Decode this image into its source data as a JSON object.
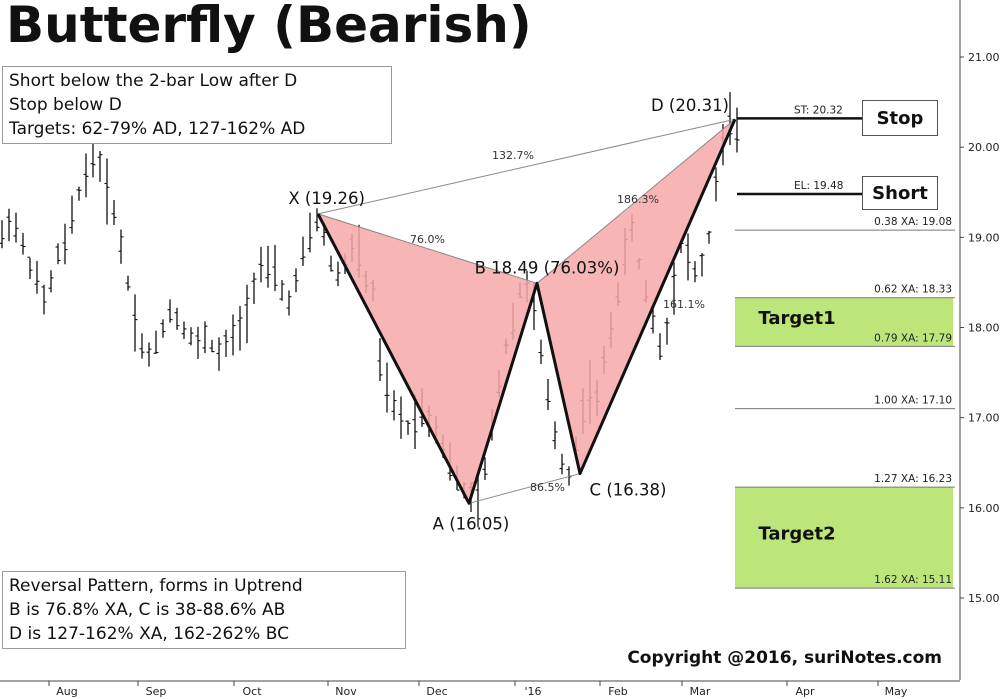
{
  "title": "Butterfly (Bearish)",
  "rules_box": {
    "lines": [
      "Short below the 2-bar Low after D",
      "Stop below D",
      "Targets: 62-79% AD, 127-162% AD"
    ]
  },
  "description_box": {
    "lines": [
      "Reversal Pattern, forms in Uptrend",
      "B is 76.8% XA, C is 38-88.6% AB",
      "D is 127-162% XA, 162-262% BC"
    ]
  },
  "copyright": "Copyright @2016, suriNotes.com",
  "side_boxes": {
    "stop": "Stop",
    "short": "Short"
  },
  "colors": {
    "pattern_fill": "#f6a8a8",
    "target_fill": "#b5e36b",
    "price_bars": "#111111",
    "background": "#ffffff"
  },
  "chart_data": {
    "type": "line",
    "title": "Butterfly (Bearish)",
    "xlabel": "",
    "ylabel": "",
    "ylim": [
      14.9,
      21.7
    ],
    "x_ticks": [
      "Aug",
      "Sep",
      "Oct",
      "Nov",
      "Dec",
      "'16",
      "Feb",
      "Mar",
      "Apr",
      "May"
    ],
    "y_ticks": [
      "15.00",
      "16.00",
      "17.00",
      "18.00",
      "19.00",
      "20.00",
      "21.00"
    ],
    "y_tick_values": [
      15,
      16,
      17,
      18,
      19,
      20,
      21
    ],
    "pattern_points": [
      {
        "label": "X (19.26)",
        "value": 19.26
      },
      {
        "label": "A (16.05)",
        "value": 16.05
      },
      {
        "label": "B 18.49 (76.03%)",
        "value": 18.49
      },
      {
        "label": "C (16.38)",
        "value": 16.38
      },
      {
        "label": "D (20.31)",
        "value": 20.31
      }
    ],
    "ratio_labels": [
      "132.7%",
      "76.0%",
      "86.5%",
      "186.3%",
      "161.1%"
    ],
    "levels": [
      {
        "label": "ST: 20.32",
        "value": 20.32
      },
      {
        "label": "EL: 19.48",
        "value": 19.48
      },
      {
        "label": "0.38 XA: 19.08",
        "value": 19.08
      },
      {
        "label": "0.62 XA: 18.33",
        "value": 18.33
      },
      {
        "label": "0.79 XA: 17.79",
        "value": 17.79
      },
      {
        "label": "1.00 XA: 17.10",
        "value": 17.1
      },
      {
        "label": "1.27 XA: 16.23",
        "value": 16.23
      },
      {
        "label": "1.62 XA: 15.11",
        "value": 15.11
      }
    ],
    "targets": [
      {
        "label": "Target1",
        "from": 18.33,
        "to": 17.79
      },
      {
        "label": "Target2",
        "from": 16.23,
        "to": 15.11
      }
    ],
    "price_series": [
      19.0,
      19.2,
      19.1,
      18.9,
      18.7,
      18.5,
      18.3,
      18.5,
      18.8,
      18.9,
      19.2,
      19.5,
      19.7,
      19.9,
      19.8,
      19.5,
      19.3,
      18.9,
      18.5,
      18.1,
      17.8,
      17.7,
      17.8,
      18.0,
      18.2,
      18.1,
      18.0,
      17.9,
      17.8,
      17.9,
      17.8,
      17.7,
      17.8,
      17.9,
      18.0,
      18.2,
      18.5,
      18.7,
      18.6,
      18.6,
      18.4,
      18.3,
      18.5,
      18.8,
      19.0,
      19.2,
      19.0,
      18.7,
      18.6,
      18.7,
      18.9,
      18.8,
      18.5,
      18.4,
      17.6,
      17.3,
      17.1,
      17.0,
      16.9,
      17.0,
      17.1,
      17.0,
      16.9,
      16.7,
      16.5,
      16.3,
      16.2,
      16.1,
      16.05,
      16.4,
      16.9,
      17.4,
      17.8,
      18.1,
      18.4,
      18.49,
      18.2,
      17.7,
      17.2,
      16.8,
      16.5,
      16.38,
      16.7,
      17.1,
      17.3,
      17.2,
      17.6,
      18.0,
      18.4,
      18.8,
      19.1,
      18.7,
      18.4,
      18.1,
      17.8,
      18.0,
      18.5,
      18.9,
      18.8,
      18.6,
      18.7,
      19.0,
      19.6,
      20.0,
      20.31,
      20.1
    ]
  }
}
